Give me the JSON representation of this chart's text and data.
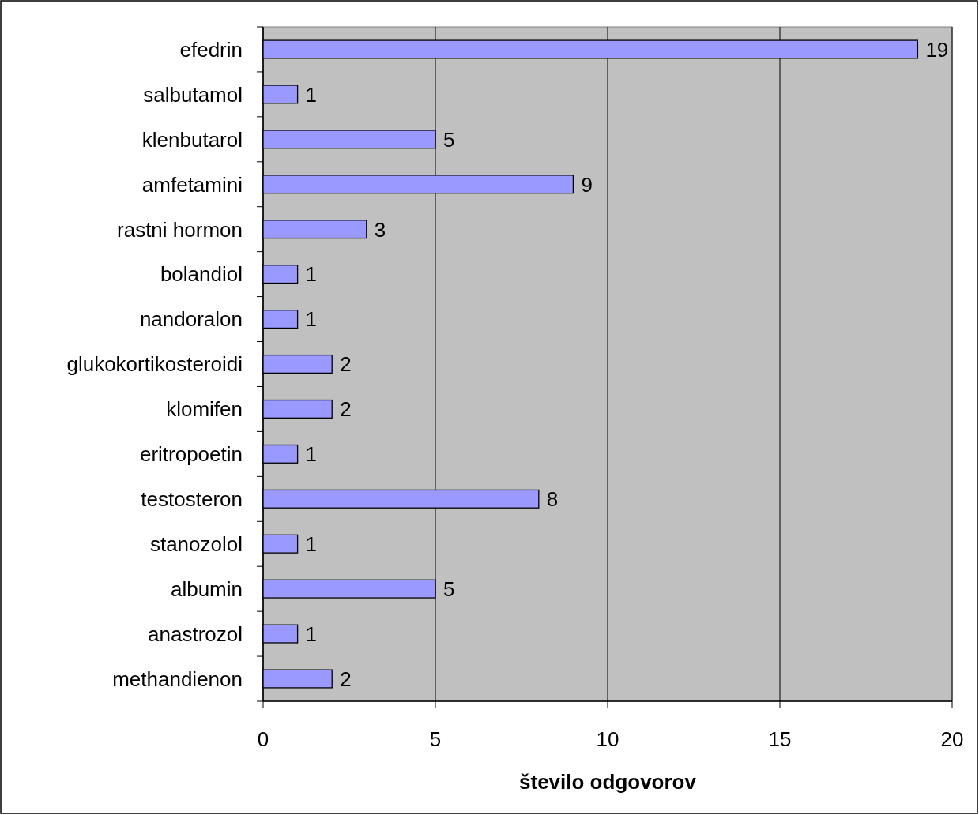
{
  "chart_data": {
    "type": "bar",
    "orientation": "horizontal",
    "xlabel": "število odgovorov",
    "categories": [
      "efedrin",
      "salbutamol",
      "klenbutarol",
      "amfetamini",
      "rastni hormon",
      "bolandiol",
      "nandoralon",
      "glukokortikosteroidi",
      "klomifen",
      "eritropoetin",
      "testosteron",
      "stanozolol",
      "albumin",
      "anastrozol",
      "methandienon"
    ],
    "values": [
      19,
      1,
      5,
      9,
      3,
      1,
      1,
      2,
      2,
      1,
      8,
      1,
      5,
      1,
      2
    ],
    "color": "#9999ff",
    "xlim": [
      0,
      20
    ],
    "xticks": [
      0,
      5,
      10,
      15,
      20
    ],
    "grid": "x",
    "data_labels": true
  }
}
